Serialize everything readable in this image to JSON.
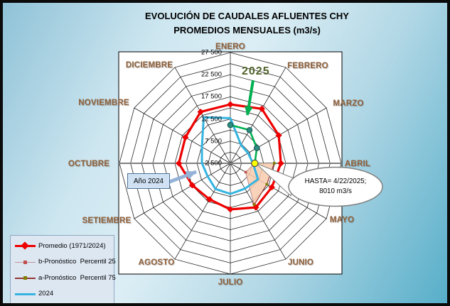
{
  "chart_data": {
    "type": "radar",
    "title": "EVOLUCIÓN DE CAUDALES AFLUENTES CHY",
    "subtitle": "PROMEDIOS MENSUALES (m3/s)",
    "categories": [
      "ENERO",
      "FEBRERO",
      "MARZO",
      "ABRIL",
      "MAYO",
      "JUNIO",
      "JULIO",
      "AGOSTO",
      "SETIEMBRE",
      "OCTUBRE",
      "NOVIEMBRE",
      "DICIEMBRE"
    ],
    "axis": {
      "min": 2500,
      "max": 27500,
      "grid_step": 2500,
      "tick_values": [
        2500,
        7500,
        12500,
        17500,
        22500,
        27500
      ],
      "tick_labels": [
        "2 500",
        "7 500",
        "12 500",
        "17 500",
        "22 500",
        "27 500"
      ]
    },
    "series": [
      {
        "name": "Promedio (1971/2024)",
        "shape": "closed",
        "color": "#EE0000",
        "width": 3.2,
        "marker": "diamond",
        "values": [
          15800,
          16700,
          15100,
          13900,
          13300,
          14000,
          12900,
          11900,
          12400,
          14100,
          14200,
          15900
        ]
      },
      {
        "name": "2024",
        "shape": "closed",
        "color": "#35B4E0",
        "width": 3,
        "marker": "none",
        "values": [
          12700,
          7300,
          7100,
          7600,
          9700,
          9100,
          9400,
          9200,
          8400,
          8900,
          9900,
          14500
        ]
      },
      {
        "name": "b-Pronóstico  Percentil 25",
        "shape": "open",
        "color": "#C49696",
        "width": 1.2,
        "marker": "square-red",
        "start_index": 3,
        "values": [
          8010,
          6500,
          13100
        ]
      },
      {
        "name": "a-Pronóstico  Percentil 75",
        "shape": "open",
        "color": "#953735",
        "width": 1.2,
        "marker": "square-olive",
        "start_index": 3,
        "values": [
          12400,
          12000,
          13300
        ]
      },
      {
        "name": "2025",
        "shape": "open",
        "color": "#00B050",
        "width": 2.6,
        "marker": "circle-teal",
        "start_index": 0,
        "values": [
          11150,
          11150,
          9400,
          8010
        ]
      }
    ],
    "band": {
      "between": [
        "b-Pronóstico  Percentil 25",
        "a-Pronóstico  Percentil 75"
      ],
      "fill": "#F8CBAD"
    },
    "last_point": {
      "month": "ABRIL",
      "value": 8010,
      "marker": "yellow-circle"
    }
  },
  "legend": {
    "items": [
      {
        "label": "Promedio (1971/2024)"
      },
      {
        "label": "b-Pronóstico  Percentil 25"
      },
      {
        "label": "a-Pronóstico  Percentil 75"
      },
      {
        "label": "2024"
      }
    ]
  },
  "annotations": {
    "year_2025_label": "2025",
    "year_2024_box": "Año 2024",
    "callout_line1": "HASTA= 4/22/2025;",
    "callout_line2": "8010 m3/s"
  },
  "colors": {
    "promedio": "#EE0000",
    "y2024": "#35B4E0",
    "y2025": "#00B050",
    "p25": "#C49696",
    "p75": "#953735",
    "band_fill": "#F8CBAD",
    "month_label": "#8f5f38",
    "green_arrow": "#00B050",
    "blue_arrow": "#95B3D7"
  }
}
